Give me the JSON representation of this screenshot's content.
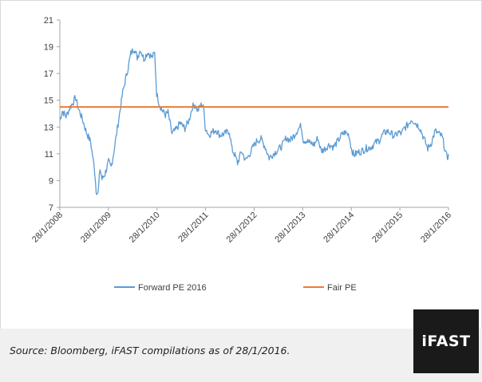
{
  "chart_data": {
    "type": "line",
    "title": "",
    "xlabel": "",
    "ylabel": "",
    "ylim": [
      7,
      21
    ],
    "y_ticks": [
      7,
      9,
      11,
      13,
      15,
      17,
      19,
      21
    ],
    "x_range": [
      "2008-01-28",
      "2016-01-28"
    ],
    "x_tick_labels": [
      "28/1/2008",
      "28/1/2009",
      "28/1/2010",
      "28/1/2011",
      "28/1/2012",
      "28/1/2013",
      "28/1/2014",
      "28/1/2015",
      "28/1/2016"
    ],
    "grid": false,
    "legend_position": "bottom",
    "series": [
      {
        "name": "Forward PE 2016",
        "color": "#5b9bd5",
        "points": [
          [
            "2008-01-28",
            13.5
          ],
          [
            "2008-02-15",
            14.2
          ],
          [
            "2008-03-15",
            13.8
          ],
          [
            "2008-04-15",
            14.5
          ],
          [
            "2008-05-10",
            14.9
          ],
          [
            "2008-05-25",
            15.2
          ],
          [
            "2008-06-15",
            14.4
          ],
          [
            "2008-07-15",
            13.6
          ],
          [
            "2008-08-15",
            12.6
          ],
          [
            "2008-09-15",
            11.9
          ],
          [
            "2008-10-01",
            10.8
          ],
          [
            "2008-10-15",
            9.8
          ],
          [
            "2008-10-27",
            8.3
          ],
          [
            "2008-11-10",
            8.0
          ],
          [
            "2008-11-25",
            9.9
          ],
          [
            "2008-12-10",
            9.1
          ],
          [
            "2009-01-01",
            9.5
          ],
          [
            "2009-01-28",
            10.4
          ],
          [
            "2009-02-15",
            10.0
          ],
          [
            "2009-03-05",
            10.9
          ],
          [
            "2009-03-25",
            12.2
          ],
          [
            "2009-04-15",
            13.6
          ],
          [
            "2009-05-15",
            15.6
          ],
          [
            "2009-06-15",
            17.0
          ],
          [
            "2009-07-15",
            18.5
          ],
          [
            "2009-08-10",
            18.9
          ],
          [
            "2009-09-01",
            18.2
          ],
          [
            "2009-09-25",
            18.8
          ],
          [
            "2009-10-20",
            18.1
          ],
          [
            "2009-11-20",
            18.6
          ],
          [
            "2009-12-20",
            18.2
          ],
          [
            "2010-01-10",
            18.5
          ],
          [
            "2010-01-25",
            15.5
          ],
          [
            "2010-02-15",
            14.7
          ],
          [
            "2010-03-10",
            14.2
          ],
          [
            "2010-04-01",
            13.9
          ],
          [
            "2010-04-20",
            14.1
          ],
          [
            "2010-05-20",
            12.5
          ],
          [
            "2010-06-20",
            12.8
          ],
          [
            "2010-07-20",
            13.3
          ],
          [
            "2010-08-25",
            12.9
          ],
          [
            "2010-09-25",
            13.5
          ],
          [
            "2010-10-20",
            14.5
          ],
          [
            "2010-11-10",
            14.7
          ],
          [
            "2010-11-30",
            14.2
          ],
          [
            "2010-12-20",
            14.6
          ],
          [
            "2011-01-10",
            14.7
          ],
          [
            "2011-01-25",
            13.0
          ],
          [
            "2011-02-20",
            12.4
          ],
          [
            "2011-03-15",
            12.6
          ],
          [
            "2011-04-15",
            12.8
          ],
          [
            "2011-05-15",
            12.4
          ],
          [
            "2011-06-20",
            12.5
          ],
          [
            "2011-07-25",
            12.7
          ],
          [
            "2011-08-15",
            11.3
          ],
          [
            "2011-09-01",
            11.0
          ],
          [
            "2011-09-25",
            10.3
          ],
          [
            "2011-10-25",
            11.2
          ],
          [
            "2011-11-25",
            10.5
          ],
          [
            "2011-12-20",
            10.9
          ],
          [
            "2012-01-20",
            11.5
          ],
          [
            "2012-02-20",
            12.0
          ],
          [
            "2012-03-20",
            12.1
          ],
          [
            "2012-04-20",
            11.5
          ],
          [
            "2012-05-20",
            10.7
          ],
          [
            "2012-06-20",
            11.0
          ],
          [
            "2012-07-25",
            11.3
          ],
          [
            "2012-08-25",
            11.6
          ],
          [
            "2012-09-25",
            12.2
          ],
          [
            "2012-10-25",
            12.0
          ],
          [
            "2012-11-25",
            12.4
          ],
          [
            "2012-12-20",
            12.8
          ],
          [
            "2013-01-15",
            13.1
          ],
          [
            "2013-02-01",
            12.0
          ],
          [
            "2013-02-20",
            12.0
          ],
          [
            "2013-03-25",
            11.8
          ],
          [
            "2013-04-25",
            11.7
          ],
          [
            "2013-05-20",
            12.2
          ],
          [
            "2013-06-15",
            11.2
          ],
          [
            "2013-07-15",
            11.4
          ],
          [
            "2013-08-15",
            11.7
          ],
          [
            "2013-09-15",
            11.5
          ],
          [
            "2013-10-15",
            11.9
          ],
          [
            "2013-11-15",
            12.4
          ],
          [
            "2013-12-10",
            12.6
          ],
          [
            "2014-01-10",
            12.4
          ],
          [
            "2014-01-28",
            11.4
          ],
          [
            "2014-02-15",
            10.9
          ],
          [
            "2014-03-15",
            11.1
          ],
          [
            "2014-04-15",
            11.2
          ],
          [
            "2014-05-20",
            11.4
          ],
          [
            "2014-06-25",
            11.5
          ],
          [
            "2014-07-25",
            11.8
          ],
          [
            "2014-08-25",
            12.0
          ],
          [
            "2014-09-25",
            12.5
          ],
          [
            "2014-10-25",
            12.7
          ],
          [
            "2014-11-25",
            12.5
          ],
          [
            "2014-12-20",
            12.3
          ],
          [
            "2015-01-15",
            12.6
          ],
          [
            "2015-02-10",
            12.5
          ],
          [
            "2015-03-01",
            12.9
          ],
          [
            "2015-04-01",
            13.2
          ],
          [
            "2015-04-25",
            13.6
          ],
          [
            "2015-05-25",
            13.3
          ],
          [
            "2015-06-25",
            13.0
          ],
          [
            "2015-07-25",
            12.2
          ],
          [
            "2015-08-25",
            11.4
          ],
          [
            "2015-09-20",
            11.8
          ],
          [
            "2015-10-20",
            12.7
          ],
          [
            "2015-11-15",
            12.5
          ],
          [
            "2015-12-10",
            12.3
          ],
          [
            "2015-12-25",
            11.7
          ],
          [
            "2016-01-10",
            10.9
          ],
          [
            "2016-01-20",
            10.7
          ],
          [
            "2016-01-28",
            11.0
          ]
        ]
      },
      {
        "name": "Fair PE",
        "color": "#ed7d31",
        "points": [
          [
            "2008-01-28",
            14.5
          ],
          [
            "2016-01-28",
            14.5
          ]
        ]
      }
    ]
  },
  "legend": {
    "forward_label": "Forward PE 2016",
    "fair_label": "Fair PE"
  },
  "footer": {
    "source_text": "Source: Bloomberg, iFAST compilations as of 28/1/2016.",
    "logo_text": "iFAST"
  }
}
